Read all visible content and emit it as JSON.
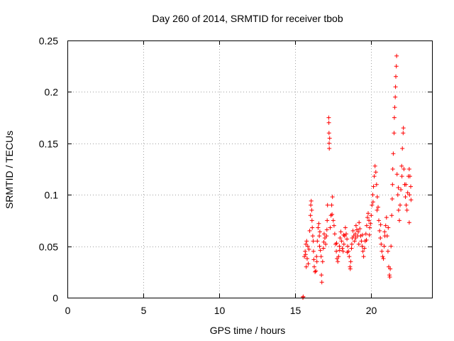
{
  "chart_data": {
    "type": "scatter",
    "title": "Day 260 of 2014, SRMTID for receiver tbob",
    "xlabel": "GPS time / hours",
    "ylabel": "SRMTID / TECUs",
    "xlim": [
      0,
      24
    ],
    "ylim": [
      0,
      0.25
    ],
    "xticks": [
      0,
      5,
      10,
      15,
      20
    ],
    "yticks": [
      0,
      0.05,
      0.1,
      0.15,
      0.2,
      0.25
    ],
    "xtick_labels": [
      "0",
      "5",
      "10",
      "15",
      "20"
    ],
    "ytick_labels": [
      "0",
      "0.05",
      "0.1",
      "0.15",
      "0.2",
      "0.25"
    ],
    "grid": true,
    "marker": "+",
    "color": "#ff0000",
    "series": [
      {
        "name": "SRMTID",
        "points": [
          [
            15.5,
            0.0
          ],
          [
            15.52,
            0.001
          ],
          [
            15.6,
            0.04
          ],
          [
            15.65,
            0.045
          ],
          [
            15.7,
            0.052
          ],
          [
            15.72,
            0.03
          ],
          [
            15.78,
            0.038
          ],
          [
            15.82,
            0.05
          ],
          [
            15.85,
            0.033
          ],
          [
            15.9,
            0.047
          ],
          [
            15.95,
            0.065
          ],
          [
            16.0,
            0.08
          ],
          [
            16.02,
            0.09
          ],
          [
            16.05,
            0.094
          ],
          [
            16.08,
            0.085
          ],
          [
            16.1,
            0.075
          ],
          [
            16.15,
            0.06
          ],
          [
            16.18,
            0.055
          ],
          [
            16.2,
            0.045
          ],
          [
            16.22,
            0.037
          ],
          [
            16.25,
            0.03
          ],
          [
            16.3,
            0.025
          ],
          [
            16.35,
            0.026
          ],
          [
            16.4,
            0.04
          ],
          [
            16.45,
            0.055
          ],
          [
            16.5,
            0.068
          ],
          [
            16.55,
            0.072
          ],
          [
            16.58,
            0.06
          ],
          [
            16.6,
            0.05
          ],
          [
            16.65,
            0.046
          ],
          [
            16.7,
            0.04
          ],
          [
            16.72,
            0.022
          ],
          [
            16.75,
            0.015
          ],
          [
            16.8,
            0.035
          ],
          [
            16.85,
            0.048
          ],
          [
            16.9,
            0.062
          ],
          [
            16.95,
            0.058
          ],
          [
            17.0,
            0.052
          ],
          [
            17.05,
            0.06
          ],
          [
            17.1,
            0.075
          ],
          [
            17.12,
            0.09
          ],
          [
            17.2,
            0.175
          ],
          [
            17.21,
            0.17
          ],
          [
            17.22,
            0.16
          ],
          [
            17.23,
            0.15
          ],
          [
            17.24,
            0.145
          ],
          [
            17.26,
            0.155
          ],
          [
            17.3,
            0.068
          ],
          [
            17.35,
            0.08
          ],
          [
            17.4,
            0.09
          ],
          [
            17.45,
            0.098
          ],
          [
            17.5,
            0.075
          ],
          [
            17.55,
            0.07
          ],
          [
            17.6,
            0.062
          ],
          [
            17.65,
            0.052
          ],
          [
            17.7,
            0.045
          ],
          [
            17.75,
            0.038
          ],
          [
            17.8,
            0.035
          ],
          [
            17.85,
            0.04
          ],
          [
            17.9,
            0.05
          ],
          [
            17.95,
            0.058
          ],
          [
            18.0,
            0.064
          ],
          [
            18.05,
            0.055
          ],
          [
            18.1,
            0.048
          ],
          [
            18.15,
            0.045
          ],
          [
            18.2,
            0.052
          ],
          [
            18.25,
            0.06
          ],
          [
            18.3,
            0.068
          ],
          [
            18.35,
            0.062
          ],
          [
            18.4,
            0.057
          ],
          [
            18.45,
            0.05
          ],
          [
            18.5,
            0.045
          ],
          [
            18.55,
            0.04
          ],
          [
            18.6,
            0.03
          ],
          [
            18.62,
            0.028
          ],
          [
            18.65,
            0.035
          ],
          [
            18.7,
            0.048
          ],
          [
            18.75,
            0.058
          ],
          [
            18.8,
            0.065
          ],
          [
            18.85,
            0.06
          ],
          [
            18.9,
            0.055
          ],
          [
            18.95,
            0.062
          ],
          [
            19.0,
            0.07
          ],
          [
            19.05,
            0.066
          ],
          [
            19.1,
            0.06
          ],
          [
            19.15,
            0.064
          ],
          [
            19.2,
            0.073
          ],
          [
            19.25,
            0.067
          ],
          [
            19.3,
            0.06
          ],
          [
            19.35,
            0.055
          ],
          [
            19.4,
            0.05
          ],
          [
            19.45,
            0.045
          ],
          [
            19.5,
            0.04
          ],
          [
            19.55,
            0.048
          ],
          [
            19.6,
            0.055
          ],
          [
            19.65,
            0.062
          ],
          [
            19.7,
            0.07
          ],
          [
            19.75,
            0.078
          ],
          [
            19.8,
            0.082
          ],
          [
            19.85,
            0.075
          ],
          [
            19.9,
            0.068
          ],
          [
            19.95,
            0.072
          ],
          [
            20.0,
            0.08
          ],
          [
            20.05,
            0.09
          ],
          [
            20.1,
            0.1
          ],
          [
            20.15,
            0.108
          ],
          [
            20.2,
            0.118
          ],
          [
            20.25,
            0.128
          ],
          [
            20.3,
            0.122
          ],
          [
            20.35,
            0.11
          ],
          [
            20.4,
            0.098
          ],
          [
            20.45,
            0.088
          ],
          [
            20.5,
            0.075
          ],
          [
            20.55,
            0.065
          ],
          [
            20.6,
            0.058
          ],
          [
            20.65,
            0.052
          ],
          [
            20.7,
            0.045
          ],
          [
            20.75,
            0.04
          ],
          [
            20.8,
            0.038
          ],
          [
            20.85,
            0.05
          ],
          [
            20.9,
            0.06
          ],
          [
            20.95,
            0.07
          ],
          [
            21.0,
            0.078
          ],
          [
            21.05,
            0.06
          ],
          [
            21.1,
            0.045
          ],
          [
            21.15,
            0.03
          ],
          [
            21.2,
            0.022
          ],
          [
            21.22,
            0.02
          ],
          [
            21.25,
            0.028
          ],
          [
            21.3,
            0.05
          ],
          [
            21.35,
            0.08
          ],
          [
            21.4,
            0.11
          ],
          [
            21.42,
            0.125
          ],
          [
            21.45,
            0.14
          ],
          [
            21.5,
            0.16
          ],
          [
            21.52,
            0.175
          ],
          [
            21.55,
            0.185
          ],
          [
            21.58,
            0.195
          ],
          [
            21.6,
            0.205
          ],
          [
            21.62,
            0.215
          ],
          [
            21.65,
            0.225
          ],
          [
            21.67,
            0.235
          ],
          [
            21.7,
            0.12
          ],
          [
            21.75,
            0.1
          ],
          [
            21.8,
            0.085
          ],
          [
            21.85,
            0.075
          ],
          [
            21.9,
            0.09
          ],
          [
            21.95,
            0.105
          ],
          [
            22.0,
            0.128
          ],
          [
            22.05,
            0.145
          ],
          [
            22.1,
            0.16
          ],
          [
            22.12,
            0.165
          ],
          [
            22.15,
            0.125
          ],
          [
            22.2,
            0.11
          ],
          [
            22.25,
            0.098
          ],
          [
            22.3,
            0.09
          ],
          [
            22.35,
            0.085
          ],
          [
            22.4,
            0.102
          ],
          [
            22.45,
            0.118
          ],
          [
            22.5,
            0.125
          ],
          [
            22.55,
            0.118
          ],
          [
            22.6,
            0.108
          ],
          [
            22.62,
            0.095
          ],
          [
            22.5,
            0.073
          ],
          [
            15.68,
            0.042
          ],
          [
            15.75,
            0.055
          ],
          [
            16.12,
            0.068
          ],
          [
            16.42,
            0.035
          ],
          [
            16.62,
            0.064
          ],
          [
            16.88,
            0.054
          ],
          [
            17.08,
            0.066
          ],
          [
            17.42,
            0.081
          ],
          [
            17.72,
            0.053
          ],
          [
            17.92,
            0.046
          ],
          [
            18.18,
            0.061
          ],
          [
            18.42,
            0.044
          ],
          [
            18.72,
            0.052
          ],
          [
            18.98,
            0.058
          ],
          [
            19.18,
            0.052
          ],
          [
            19.42,
            0.061
          ],
          [
            19.68,
            0.056
          ],
          [
            19.88,
            0.061
          ],
          [
            20.12,
            0.093
          ],
          [
            20.38,
            0.085
          ],
          [
            20.62,
            0.071
          ],
          [
            20.88,
            0.064
          ],
          [
            21.12,
            0.068
          ],
          [
            21.38,
            0.096
          ],
          [
            21.78,
            0.107
          ],
          [
            22.02,
            0.118
          ],
          [
            22.28,
            0.11
          ],
          [
            22.52,
            0.1
          ]
        ]
      }
    ]
  }
}
